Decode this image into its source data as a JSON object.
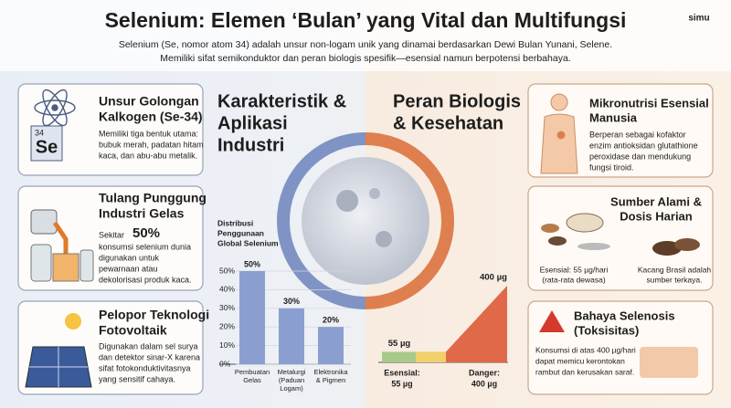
{
  "header": {
    "title": "Selenium: Elemen ‘Bulan’ yang Vital dan Multifungsi",
    "subtitle_lines": [
      "Selenium (Se, nomor atom 34) adalah unsur non-logam unik yang dinamai berdasarkan Dewi Bulan Yunani, Selene.",
      "Memiliki sifat semikonduktor dan peran biologis spesifik—esensial namun berpotensi berbahaya."
    ],
    "logo": "simu"
  },
  "left_panels": [
    {
      "title_lines": [
        "Unsur Golongan",
        "Kalkogen (Se-34)"
      ],
      "symbol": "Se",
      "atomic_number": "34",
      "body_lines": [
        "Memiliki tiga bentuk utama:",
        "bubuk merah, padatan hitam",
        "kaca, dan abu-abu metalik."
      ]
    },
    {
      "title_lines": [
        "Tulang Punggung",
        "Industri Gelas"
      ],
      "lead": "Sekitar",
      "highlight": "50%",
      "body_lines": [
        "konsumsi selenium dunia",
        "digunakan untuk",
        "pewarnaan atau",
        "dekolorisasi produk kaca."
      ]
    },
    {
      "title_lines": [
        "Pelopor Teknologi",
        "Fotovoltaik"
      ],
      "body_lines": [
        "Digunakan dalam sel surya",
        "dan detektor sinar-X karena",
        "sifat fotokonduktivitasnya",
        "yang sensitif cahaya."
      ]
    }
  ],
  "center": {
    "left_heading": [
      "Karakteristik &",
      "Aplikasi",
      "Industri"
    ],
    "right_heading": [
      "Peran Biologis",
      "& Kesehatan"
    ]
  },
  "usage_chart": {
    "type": "bar",
    "title_lines": [
      "Distribusi",
      "Penggunaan",
      "Global Selenium"
    ],
    "categories": [
      [
        "Pembuatan",
        "Gelas"
      ],
      [
        "Metalurgi",
        "(Paduan",
        "Logam)"
      ],
      [
        "Elektronika",
        "& Pigmen"
      ]
    ],
    "values": [
      50,
      30,
      20
    ],
    "value_labels": [
      "50%",
      "30%",
      "20%"
    ],
    "color": "#8a9fcf",
    "ylim": [
      0,
      50
    ],
    "yticks": [
      {
        "value": 0,
        "label": "0%"
      },
      {
        "value": 10,
        "label": "10%"
      },
      {
        "value": 20,
        "label": "20%"
      },
      {
        "value": 30,
        "label": "30%"
      },
      {
        "value": 40,
        "label": "40%"
      },
      {
        "value": 50,
        "label": "50%"
      }
    ],
    "grid": true
  },
  "dose_chart": {
    "type": "ramp",
    "values": [
      55,
      400
    ],
    "value_labels": [
      "55 µg",
      "400 µg"
    ],
    "bottom_labels": [
      [
        "Esensial:",
        "55 µg"
      ],
      [
        "Danger:",
        "400 µg"
      ]
    ]
  },
  "right_panels": [
    {
      "title_lines": [
        "Mikronutrisi Esensial",
        "Manusia"
      ],
      "body_lines": [
        "Berperan sebagai kofaktor",
        "enzim antioksidan glutathione",
        "peroxidase dan mendukung",
        "fungsi tiroid."
      ]
    },
    {
      "title_lines": [
        "Sumber Alami &",
        "Dosis Harian"
      ],
      "captions": [
        [
          "Esensial: 55 µg/hari",
          "(rata-rata dewasa)"
        ],
        [
          "Kacang Brasil adalah",
          "sumber terkaya."
        ]
      ]
    },
    {
      "title_lines": [
        "Bahaya Selenosis",
        "(Toksisitas)"
      ],
      "body_lines": [
        "Konsumsi di atas 400 µg/hari",
        "dapat memicu kerontokan",
        "rambut dan kerusakan saraf."
      ]
    }
  ]
}
